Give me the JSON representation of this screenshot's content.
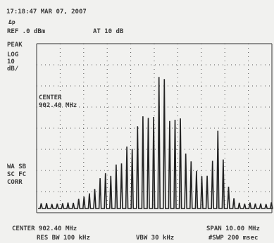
{
  "header": {
    "timestamp": "17:18:47 MAR 07, 2007",
    "marker_symbol": "Δp",
    "reference_level": "REF .0 dBm",
    "attenuation": "AT 10 dB"
  },
  "left_panel": {
    "detector": "PEAK",
    "scale_type": "LOG",
    "scale_value": "10",
    "scale_unit": "dB/",
    "status": [
      "WA SB",
      "SC FC",
      "CORR"
    ]
  },
  "marker": {
    "label": "CENTER",
    "frequency": "902.40 MHz"
  },
  "footer": {
    "center": "CENTER 902.40 MHz",
    "span": "SPAN 10.00 MHz",
    "res_bw": "RES BW 100 kHz",
    "vbw": "VBW 30 kHz",
    "sweep": "#SWP 200 msec"
  }
}
